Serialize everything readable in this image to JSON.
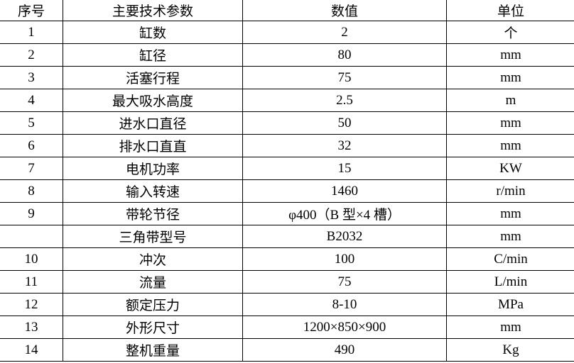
{
  "headers": [
    "序号",
    "主要技术参数",
    "数值",
    "单位"
  ],
  "rows": [
    {
      "no": "1",
      "param": "缸数",
      "value": "2",
      "unit": "个"
    },
    {
      "no": "2",
      "param": "缸径",
      "value": "80",
      "unit": "mm"
    },
    {
      "no": "3",
      "param": "活塞行程",
      "value": "75",
      "unit": "mm"
    },
    {
      "no": "4",
      "param": "最大吸水高度",
      "value": "2.5",
      "unit": "m"
    },
    {
      "no": "5",
      "param": "进水口直径",
      "value": "50",
      "unit": "mm"
    },
    {
      "no": "6",
      "param": "排水口直直",
      "value": "32",
      "unit": "mm"
    },
    {
      "no": "7",
      "param": "电机功率",
      "value": "15",
      "unit": "KW"
    },
    {
      "no": "8",
      "param": "输入转速",
      "value": "1460",
      "unit": "r/min"
    },
    {
      "no": "9",
      "param": "带轮节径",
      "value": "φ400（B 型×4 槽）",
      "unit": "mm"
    },
    {
      "no": "",
      "param": "三角带型号",
      "value": "B2032",
      "unit": "mm"
    },
    {
      "no": "10",
      "param": "冲次",
      "value": "100",
      "unit": "C/min"
    },
    {
      "no": "11",
      "param": "流量",
      "value": "75",
      "unit": "L/min"
    },
    {
      "no": "12",
      "param": "额定压力",
      "value": "8-10",
      "unit": "MPa"
    },
    {
      "no": "13",
      "param": "外形尺寸",
      "value": "1200×850×900",
      "unit": "mm"
    },
    {
      "no": "14",
      "param": "整机重量",
      "value": "490",
      "unit": "Kg"
    }
  ]
}
